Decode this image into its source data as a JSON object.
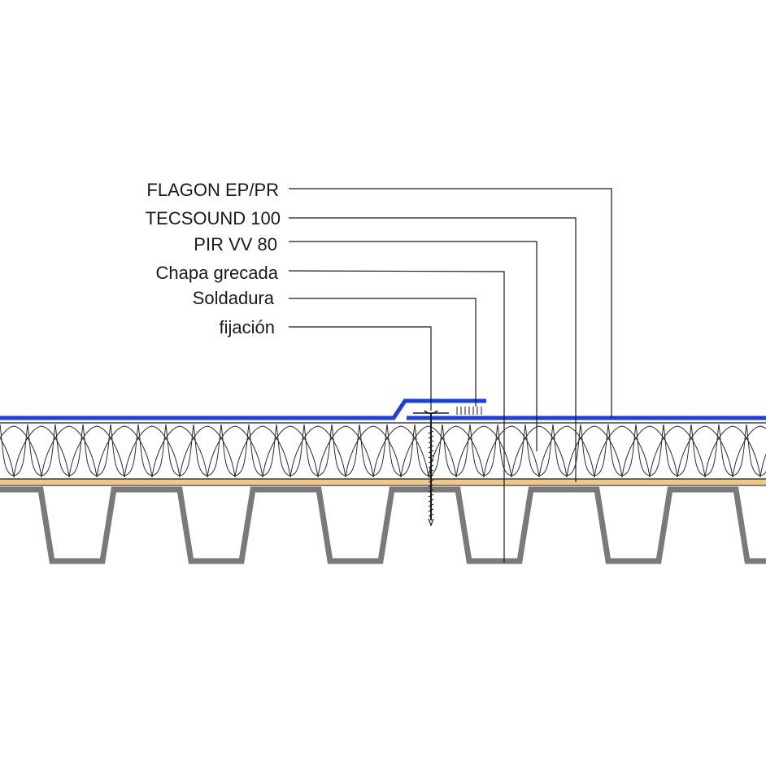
{
  "labels": [
    {
      "id": "membrane",
      "text": "FLAGON EP/PR"
    },
    {
      "id": "acoustic",
      "text": "TECSOUND 100"
    },
    {
      "id": "insulation",
      "text": "PIR VV 80"
    },
    {
      "id": "deck",
      "text": "Chapa grecada"
    },
    {
      "id": "weld",
      "text": "Soldadura"
    },
    {
      "id": "fixing",
      "text": "fijación"
    }
  ],
  "colors": {
    "membrane": "#1a3fe0",
    "acoustic_layer": "#f0c88c",
    "deck_steel": "#7a7a7a",
    "insulation_outline": "#2a2a2a",
    "line": "#1a1a1a",
    "background": "#ffffff"
  }
}
